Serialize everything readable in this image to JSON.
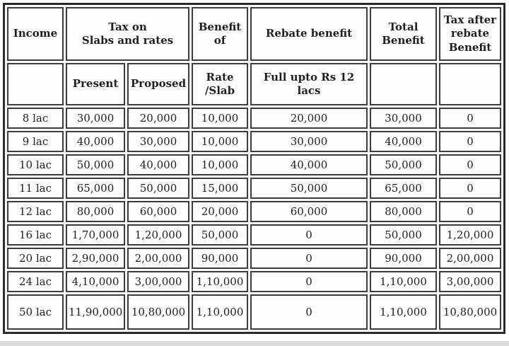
{
  "colors": {
    "outer_border": "#2b2b2b",
    "cell_border": "#3d3d3d",
    "cell_background": "#fdfdfd",
    "text": "#1f1f1f",
    "bottom_strip": "#dcdcdc"
  },
  "chart_data": {
    "type": "table",
    "title": "",
    "header_row1": {
      "income": "Income",
      "tax_on_slabs": "Tax on\nSlabs and rates",
      "benefit_of": "Benefit\nof",
      "rebate_benefit": "Rebate benefit",
      "total_benefit": "Total\nBenefit",
      "tax_after_rebate": "Tax after\nrebate\nBenefit"
    },
    "header_row2": {
      "income_blank": "",
      "present": "Present",
      "proposed": "Proposed",
      "rate_slab": "Rate\n/Slab",
      "full_upto": "Full upto Rs 12\nlacs",
      "total_blank": "",
      "tax_after_blank": ""
    },
    "columns": [
      "income",
      "present",
      "proposed",
      "rate_slab",
      "rebate",
      "total",
      "tax_after"
    ],
    "rows": [
      [
        "8 lac",
        "30,000",
        "20,000",
        "10,000",
        "20,000",
        "30,000",
        "0"
      ],
      [
        "9 lac",
        "40,000",
        "30,000",
        "10,000",
        "30,000",
        "40,000",
        "0"
      ],
      [
        "10 lac",
        "50,000",
        "40,000",
        "10,000",
        "40,000",
        "50,000",
        "0"
      ],
      [
        "11 lac",
        "65,000",
        "50,000",
        "15,000",
        "50,000",
        "65,000",
        "0"
      ],
      [
        "12 lac",
        "80,000",
        "60,000",
        "20,000",
        "60,000",
        "80,000",
        "0"
      ],
      [
        "16 lac",
        "1,70,000",
        "1,20,000",
        "50,000",
        "0",
        "50,000",
        "1,20,000"
      ],
      [
        "20 lac",
        "2,90,000",
        "2,00,000",
        "90,000",
        "0",
        "90,000",
        "2,00,000"
      ],
      [
        "24 lac",
        "4,10,000",
        "3,00,000",
        "1,10,000",
        "0",
        "1,10,000",
        "3,00,000"
      ],
      [
        "50 lac",
        "11,90,000",
        "10,80,000",
        "1,10,000",
        "0",
        "1,10,000",
        "10,80,000"
      ]
    ]
  }
}
